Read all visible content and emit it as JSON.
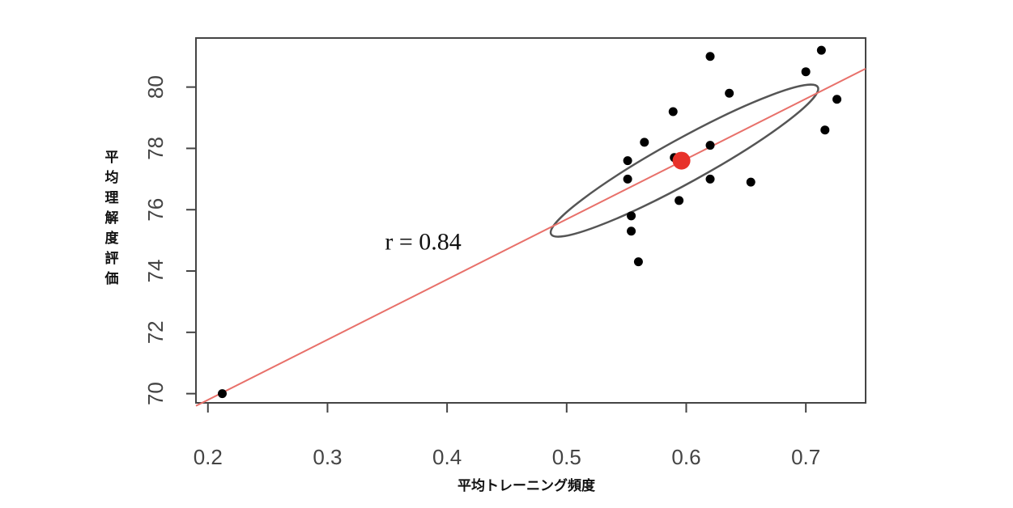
{
  "chart_data": {
    "type": "scatter",
    "title": "",
    "xlabel": "平均トレーニング頻度",
    "ylabel": "平均理解度評価",
    "xlim": [
      0.19,
      0.75
    ],
    "ylim": [
      69.7,
      81.6
    ],
    "x_ticks": [
      0.2,
      0.3,
      0.4,
      0.5,
      0.6,
      0.7
    ],
    "x_tick_labels": [
      "0.2",
      "0.3",
      "0.4",
      "0.5",
      "0.6",
      "0.7"
    ],
    "y_ticks": [
      70,
      72,
      74,
      76,
      78,
      80
    ],
    "y_tick_labels": [
      "70",
      "72",
      "74",
      "76",
      "78",
      "80"
    ],
    "grid": false,
    "points": [
      {
        "x": 0.212,
        "y": 70.0
      },
      {
        "x": 0.551,
        "y": 77.6
      },
      {
        "x": 0.551,
        "y": 77.0
      },
      {
        "x": 0.554,
        "y": 75.8
      },
      {
        "x": 0.554,
        "y": 75.3
      },
      {
        "x": 0.56,
        "y": 74.3
      },
      {
        "x": 0.565,
        "y": 78.2
      },
      {
        "x": 0.589,
        "y": 79.2
      },
      {
        "x": 0.59,
        "y": 77.7
      },
      {
        "x": 0.594,
        "y": 76.3
      },
      {
        "x": 0.62,
        "y": 81.0
      },
      {
        "x": 0.62,
        "y": 78.1
      },
      {
        "x": 0.62,
        "y": 77.0
      },
      {
        "x": 0.636,
        "y": 79.8
      },
      {
        "x": 0.654,
        "y": 76.9
      },
      {
        "x": 0.7,
        "y": 80.5
      },
      {
        "x": 0.713,
        "y": 81.2
      },
      {
        "x": 0.716,
        "y": 78.6
      },
      {
        "x": 0.726,
        "y": 79.6
      }
    ],
    "mean_point": {
      "x": 0.596,
      "y": 77.6,
      "color": "#e8322a"
    },
    "regression_line": {
      "x": [
        0.19,
        0.75
      ],
      "y": [
        69.6,
        80.6
      ],
      "color": "#e8706a"
    },
    "ellipse": {
      "from": [
        0.487,
        75.2
      ],
      "to": [
        0.71,
        80.0
      ],
      "half_width_y": 0.75,
      "color": "#555555"
    },
    "annotation": {
      "text": "r = 0.84",
      "x": 0.38,
      "y": 74.7
    }
  }
}
